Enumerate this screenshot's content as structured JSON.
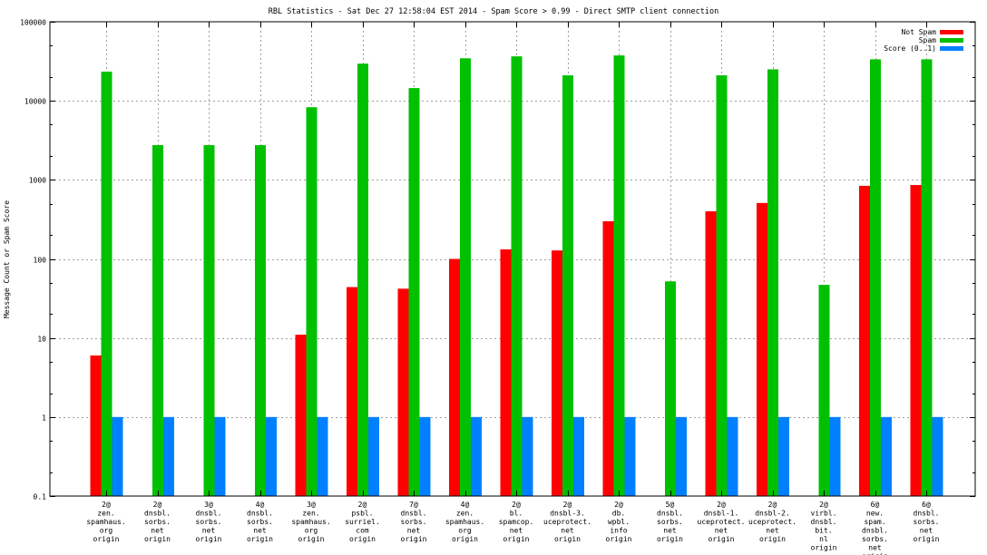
{
  "chart_data": {
    "type": "bar",
    "title": "RBL Statistics - Sat Dec 27 12:58:04 EST 2014 - Spam Score > 0.99 - Direct SMTP client connection",
    "xlabel": "",
    "ylabel": "Message Count or Spam Score",
    "yscale": "log",
    "ylim": [
      0.1,
      100000
    ],
    "yticks": [
      "0.1",
      "1",
      "10",
      "100",
      "1000",
      "10000",
      "100000"
    ],
    "ytick_values": [
      0.1,
      1,
      10,
      100,
      1000,
      10000,
      100000
    ],
    "grid": true,
    "legend_position": "top-right",
    "categories": [
      [
        "2@",
        "zen.",
        "spamhaus.",
        "org",
        "origin"
      ],
      [
        "2@",
        "dnsbl.",
        "sorbs.",
        "net",
        "origin"
      ],
      [
        "3@",
        "dnsbl.",
        "sorbs.",
        "net",
        "origin"
      ],
      [
        "4@",
        "dnsbl.",
        "sorbs.",
        "net",
        "origin"
      ],
      [
        "3@",
        "zen.",
        "spamhaus.",
        "org",
        "origin"
      ],
      [
        "2@",
        "psbl.",
        "surriel.",
        "com",
        "origin"
      ],
      [
        "7@",
        "dnsbl.",
        "sorbs.",
        "net",
        "origin"
      ],
      [
        "4@",
        "zen.",
        "spamhaus.",
        "org",
        "origin"
      ],
      [
        "2@",
        "bl.",
        "spamcop.",
        "net",
        "origin"
      ],
      [
        "2@",
        "dnsbl-3.",
        "uceprotect.",
        "net",
        "origin"
      ],
      [
        "2@",
        "db.",
        "wpbl.",
        "info",
        "origin"
      ],
      [
        "5@",
        "dnsbl.",
        "sorbs.",
        "net",
        "origin"
      ],
      [
        "2@",
        "dnsbl-1.",
        "uceprotect.",
        "net",
        "origin"
      ],
      [
        "2@",
        "dnsbl-2.",
        "uceprotect.",
        "net",
        "origin"
      ],
      [
        "2@",
        "virbl.",
        "dnsbl.",
        "bit.",
        "nl",
        "origin"
      ],
      [
        "6@",
        "new.",
        "spam.",
        "dnsbl.",
        "sorbs.",
        "net",
        "origin"
      ],
      [
        "6@",
        "dnsbl.",
        "sorbs.",
        "net",
        "origin"
      ]
    ],
    "series": [
      {
        "name": "Not Spam",
        "color": "#ff0000",
        "values": [
          6,
          null,
          null,
          null,
          11,
          44,
          42,
          100,
          132,
          128,
          300,
          null,
          400,
          510,
          null,
          840,
          860
        ]
      },
      {
        "name": "Spam",
        "color": "#00c000",
        "values": [
          23400,
          2750,
          2750,
          2750,
          8300,
          29500,
          14500,
          34500,
          36500,
          21000,
          37500,
          52,
          21000,
          25000,
          47,
          33500,
          33500
        ]
      },
      {
        "name": "Score (0..1)",
        "color": "#0080ff",
        "values": [
          1,
          1,
          1,
          1,
          1,
          1,
          1,
          1,
          1,
          1,
          1,
          1,
          1,
          1,
          1,
          1,
          1
        ]
      }
    ]
  }
}
